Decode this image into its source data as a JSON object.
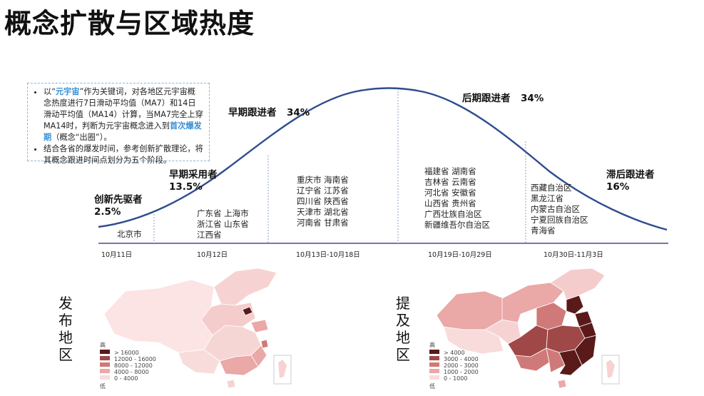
{
  "title": "概念扩散与区域热度",
  "note": {
    "b1_pre": "以“",
    "b1_kw": "元宇宙",
    "b1_mid": "”作为关键词，对各地区元宇宙概念热度进行7日滑动平均值（MA7）和14日滑动平均值（MA14）计算，当MA7完全上穿MA14时，判断为元宇宙概念进入到",
    "b1_hl": "首次爆发期",
    "b1_post": "（概念“出圈”）。",
    "b2": "结合各省的爆发时间，参考创新扩散理论，将其概念跟进时间点划分为五个阶段。"
  },
  "stages": [
    {
      "label": "创新先驱者",
      "pct": "2.5%"
    },
    {
      "label": "早期采用者",
      "pct": "13.5%"
    },
    {
      "label": "早期跟进者",
      "pct": "34%"
    },
    {
      "label": "后期跟进者",
      "pct": "34%"
    },
    {
      "label": "滞后跟进者",
      "pct": "16%"
    }
  ],
  "provinces": {
    "s1": [
      "北京市"
    ],
    "s2": [
      "广东省 上海市",
      "浙江省 山东省",
      "江西省"
    ],
    "s3": [
      "重庆市 海南省",
      "辽宁省 江苏省",
      "四川省 陕西省",
      "天津市 湖北省",
      "河南省 甘肃省"
    ],
    "s4": [
      "福建省 湖南省",
      "吉林省 云南省",
      "河北省 安徽省",
      "山西省 贵州省",
      "广西壮族自治区",
      "新疆维吾尔自治区"
    ],
    "s5": [
      "西藏自治区",
      "黑龙江省",
      "内蒙古自治区",
      "宁夏回族自治区",
      "青海省"
    ]
  },
  "dates": [
    "10月11日",
    "10月12日",
    "10月13日-10月18日",
    "10月19日-10月29日",
    "10月30日-11月3日"
  ],
  "map_publish": {
    "label": "发布地区",
    "legend_high": "高",
    "legend_low": "低",
    "legend": [
      "> 16000",
      "12000 - 16000",
      "8000 - 12000",
      "4000 - 8000",
      "0 - 4000"
    ],
    "legend_colors": [
      "#5a1a1a",
      "#a04848",
      "#cf7a78",
      "#eaa8a6",
      "#f8dcdb"
    ]
  },
  "map_mention": {
    "label": "提及地区",
    "legend_high": "高",
    "legend_low": "低",
    "legend": [
      "> 4000",
      "3000 - 4000",
      "2000 - 3000",
      "1000 - 2000",
      "0 - 1000"
    ],
    "legend_colors": [
      "#5a1a1a",
      "#a04848",
      "#cf7a78",
      "#eaa8a6",
      "#f8dcdb"
    ]
  }
}
